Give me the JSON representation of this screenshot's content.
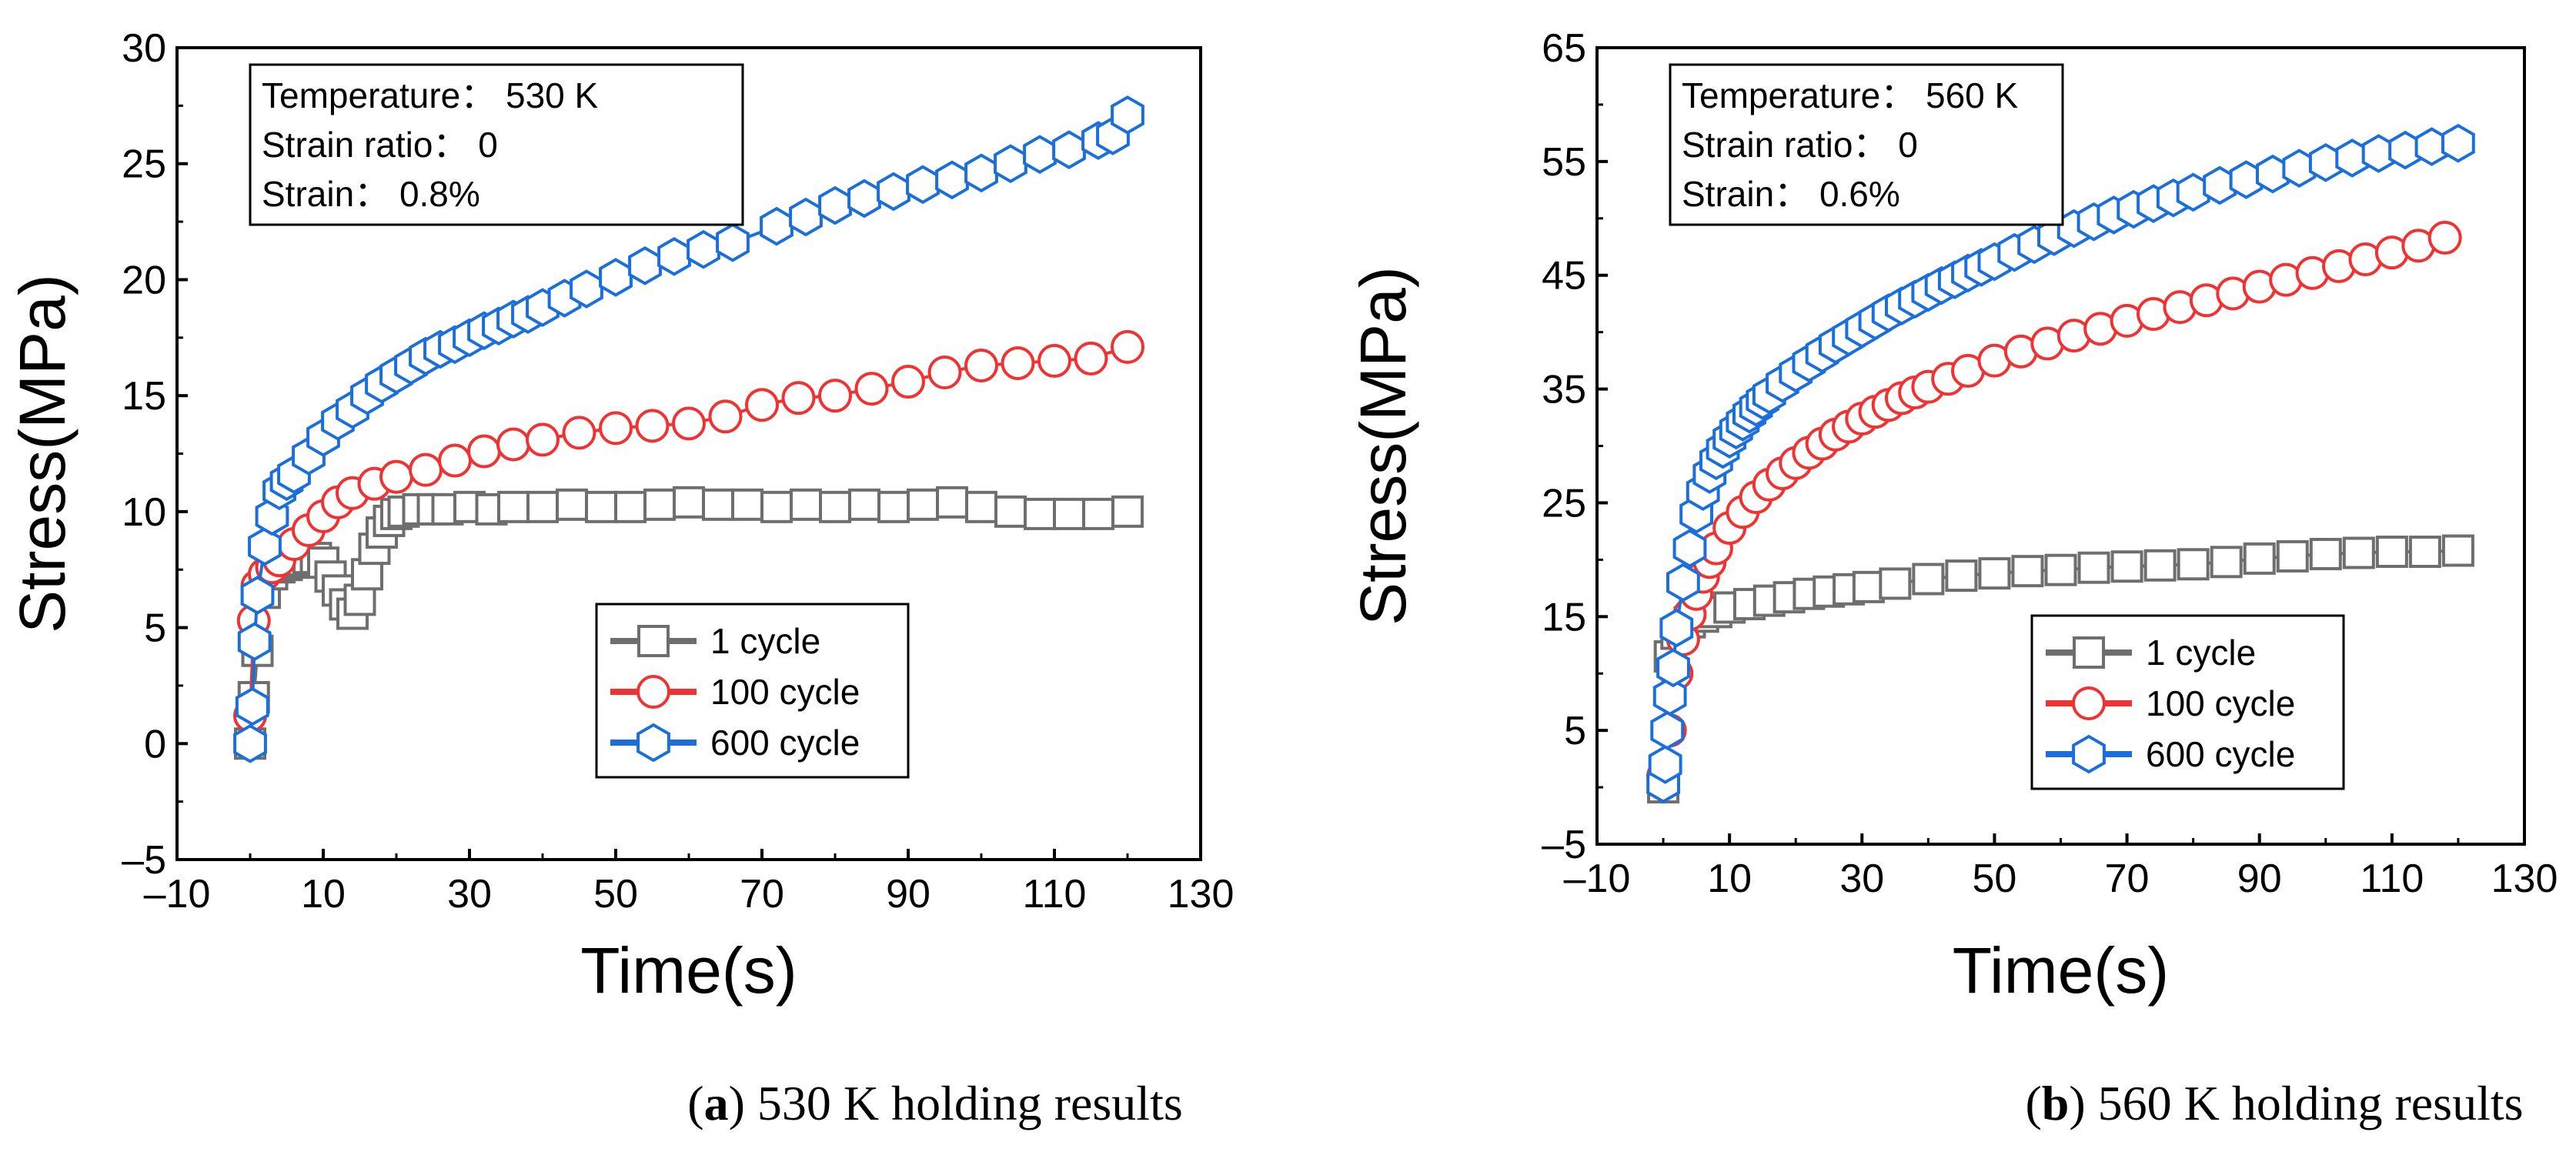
{
  "chart_data": [
    {
      "type": "scatter",
      "panel": "a",
      "caption_label": "a",
      "caption_text": "530 K holding results",
      "xlabel": "Time(s)",
      "ylabel": "Stress(MPa)",
      "xlim": [
        -10,
        130
      ],
      "ylim": [
        -5,
        30
      ],
      "xticks": [
        -10,
        10,
        30,
        50,
        70,
        90,
        110,
        130
      ],
      "xtick_labels": [
        "–10",
        "10",
        "30",
        "50",
        "70",
        "90",
        "110",
        "130"
      ],
      "yticks": [
        -5,
        0,
        5,
        10,
        15,
        20,
        25,
        30
      ],
      "ytick_labels": [
        "–5",
        "0",
        "5",
        "10",
        "15",
        "20",
        "25",
        "30"
      ],
      "info": [
        "Temperature： 530 K",
        "Strain ratio： 0",
        "Strain： 0.8%"
      ],
      "legend_position": "bottom-right",
      "series": [
        {
          "name": "1 cycle",
          "color": "#6e6e6e",
          "marker": "square",
          "x": [
            0,
            0.5,
            1,
            2,
            3,
            4,
            5,
            6,
            7,
            8,
            9,
            10,
            11,
            12,
            13,
            14,
            15,
            16,
            17,
            18,
            19,
            20,
            21,
            23,
            25,
            27,
            30,
            33,
            36,
            40,
            44,
            48,
            52,
            56,
            60,
            64,
            68,
            72,
            76,
            80,
            84,
            88,
            92,
            96,
            100,
            104,
            108,
            112,
            116,
            120
          ],
          "y": [
            0,
            2,
            4,
            6.5,
            7.3,
            7.6,
            7.7,
            7.8,
            7.9,
            8.0,
            8.0,
            7.8,
            7.2,
            6.6,
            6.0,
            5.6,
            6.2,
            7.3,
            8.4,
            9.1,
            9.6,
            9.9,
            10.0,
            10.1,
            10.1,
            10.1,
            10.2,
            10.1,
            10.2,
            10.2,
            10.3,
            10.2,
            10.2,
            10.3,
            10.4,
            10.3,
            10.3,
            10.2,
            10.3,
            10.2,
            10.3,
            10.2,
            10.3,
            10.4,
            10.2,
            10.0,
            9.9,
            9.9,
            9.9,
            10.0
          ]
        },
        {
          "name": "100 cycle",
          "color": "#f03232",
          "marker": "circle",
          "x": [
            0,
            0.5,
            1,
            2,
            3,
            4,
            6,
            8,
            10,
            12,
            14,
            17,
            20,
            24,
            28,
            32,
            36,
            40,
            45,
            50,
            55,
            60,
            65,
            70,
            75,
            80,
            85,
            90,
            95,
            100,
            105,
            110,
            115,
            120
          ],
          "y": [
            1.2,
            5.3,
            6.8,
            7.3,
            7.6,
            7.9,
            8.6,
            9.2,
            9.8,
            10.4,
            10.8,
            11.2,
            11.5,
            11.8,
            12.2,
            12.6,
            12.9,
            13.1,
            13.4,
            13.6,
            13.7,
            13.8,
            14.1,
            14.6,
            14.9,
            15.0,
            15.3,
            15.6,
            16.0,
            16.3,
            16.4,
            16.5,
            16.6,
            17.1
          ]
        },
        {
          "name": "600 cycle",
          "color": "#1a6fdc",
          "marker": "hexagon",
          "x": [
            0,
            0.3,
            0.6,
            1,
            2,
            3,
            4,
            5,
            6,
            8,
            10,
            12,
            14,
            16,
            18,
            20,
            22,
            24,
            26,
            28,
            30,
            32,
            34,
            36,
            38,
            40,
            43,
            46,
            50,
            54,
            58,
            62,
            66,
            72,
            76,
            80,
            84,
            88,
            92,
            96,
            100,
            104,
            108,
            112,
            116,
            118,
            120
          ],
          "y": [
            0,
            1.6,
            4.4,
            6.4,
            8.5,
            9.8,
            10.9,
            11.3,
            11.6,
            12.4,
            13.2,
            13.9,
            14.4,
            15.0,
            15.5,
            15.9,
            16.3,
            16.7,
            17.0,
            17.2,
            17.5,
            17.8,
            18.0,
            18.3,
            18.5,
            18.8,
            19.2,
            19.6,
            20.1,
            20.6,
            21.0,
            21.3,
            21.6,
            22.3,
            22.7,
            23.2,
            23.5,
            23.8,
            24.1,
            24.3,
            24.6,
            25.0,
            25.4,
            25.6,
            26.0,
            26.2,
            27.1
          ]
        }
      ]
    },
    {
      "type": "scatter",
      "panel": "b",
      "caption_label": "b",
      "caption_text": "560 K holding results",
      "xlabel": "Time(s)",
      "ylabel": "Stress(MPa)",
      "xlim": [
        -10,
        130
      ],
      "ylim": [
        -5,
        65
      ],
      "xticks": [
        -10,
        10,
        30,
        50,
        70,
        90,
        110,
        130
      ],
      "xtick_labels": [
        "–10",
        "10",
        "30",
        "50",
        "70",
        "90",
        "110",
        "130"
      ],
      "yticks": [
        -5,
        5,
        15,
        25,
        35,
        45,
        55,
        65
      ],
      "ytick_labels": [
        "–5",
        "5",
        "15",
        "25",
        "35",
        "45",
        "55",
        "65"
      ],
      "info": [
        "Temperature： 560 K",
        "Strain ratio： 0",
        "Strain： 0.6%"
      ],
      "legend_position": "bottom-right",
      "series": [
        {
          "name": "1 cycle",
          "color": "#6e6e6e",
          "marker": "square",
          "x": [
            0,
            1,
            2,
            4,
            6,
            8,
            10,
            13,
            16,
            19,
            22,
            25,
            28,
            31,
            35,
            40,
            45,
            50,
            55,
            60,
            65,
            70,
            75,
            80,
            85,
            90,
            95,
            100,
            105,
            110,
            115,
            120
          ],
          "y": [
            0,
            11.5,
            13.5,
            14.5,
            15.0,
            15.4,
            15.8,
            16.1,
            16.4,
            16.7,
            17.0,
            17.2,
            17.4,
            17.6,
            17.9,
            18.3,
            18.6,
            18.8,
            19.0,
            19.1,
            19.3,
            19.4,
            19.5,
            19.6,
            19.8,
            20.1,
            20.3,
            20.5,
            20.6,
            20.7,
            20.7,
            20.8
          ]
        },
        {
          "name": "100 cycle",
          "color": "#f03232",
          "marker": "circle",
          "x": [
            0,
            1,
            2,
            3,
            4,
            5,
            6,
            7,
            8,
            10,
            12,
            14,
            16,
            18,
            20,
            22,
            24,
            26,
            28,
            30,
            32,
            34,
            36,
            38,
            40,
            43,
            46,
            50,
            54,
            58,
            62,
            66,
            70,
            74,
            78,
            82,
            86,
            90,
            94,
            98,
            102,
            106,
            110,
            114,
            118
          ],
          "y": [
            1,
            5,
            10,
            13,
            15.2,
            17,
            18.5,
            19.8,
            21,
            22.8,
            24.2,
            25.5,
            26.6,
            27.6,
            28.5,
            29.4,
            30.2,
            31.0,
            31.7,
            32.4,
            33.0,
            33.6,
            34.2,
            34.7,
            35.2,
            35.9,
            36.6,
            37.5,
            38.3,
            39.0,
            39.7,
            40.3,
            41.0,
            41.6,
            42.2,
            42.8,
            43.4,
            44.0,
            44.6,
            45.2,
            45.8,
            46.4,
            47.0,
            47.6,
            48.3
          ]
        },
        {
          "name": "600 cycle",
          "color": "#1a6fdc",
          "marker": "hexagon",
          "x": [
            0,
            0.3,
            0.6,
            1,
            1.5,
            2,
            3,
            4,
            5,
            6,
            7,
            8,
            9,
            10,
            11,
            12,
            13,
            14,
            15,
            16,
            18,
            20,
            22,
            24,
            26,
            28,
            30,
            32,
            34,
            36,
            38,
            40,
            42,
            44,
            46,
            48,
            50,
            53,
            56,
            59,
            62,
            65,
            68,
            71,
            74,
            77,
            80,
            84,
            88,
            92,
            96,
            100,
            104,
            108,
            112,
            116,
            120
          ],
          "y": [
            0.3,
            2,
            5,
            8,
            10.5,
            14,
            18,
            21,
            24,
            26,
            27.5,
            28.7,
            29.7,
            30.6,
            31.4,
            32.1,
            32.8,
            33.4,
            34.0,
            34.5,
            35.5,
            36.4,
            37.3,
            38.1,
            38.9,
            39.6,
            40.3,
            41.0,
            41.7,
            42.3,
            42.9,
            43.5,
            44.1,
            44.6,
            45.2,
            45.7,
            46.2,
            47.0,
            47.7,
            48.4,
            49.1,
            49.7,
            50.3,
            50.8,
            51.3,
            51.8,
            52.3,
            52.9,
            53.4,
            53.9,
            54.4,
            54.9,
            55.3,
            55.7,
            56.0,
            56.3,
            56.6
          ]
        }
      ]
    }
  ]
}
